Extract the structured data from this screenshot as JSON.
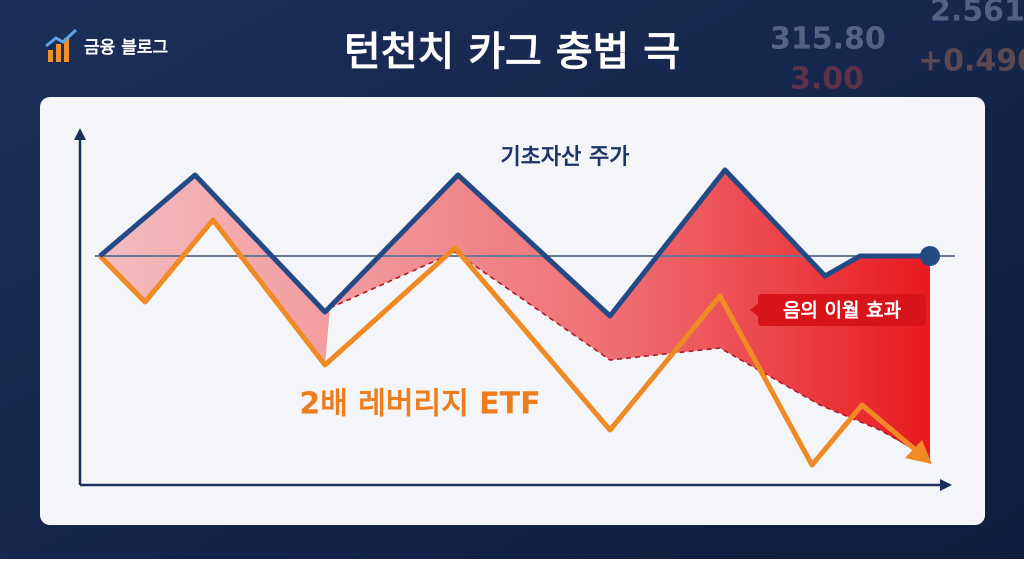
{
  "header": {
    "brand": "금융 블로그",
    "title": "턴천치 카그 충법 극"
  },
  "background_tickers": [
    "315.80",
    "3.00",
    "2.561",
    "+0.490"
  ],
  "diagram": {
    "underlying_label": "기초자산 주가",
    "etf_label": "2배 레버리지 ETF",
    "effect_label": "음의 이월 효과"
  }
}
